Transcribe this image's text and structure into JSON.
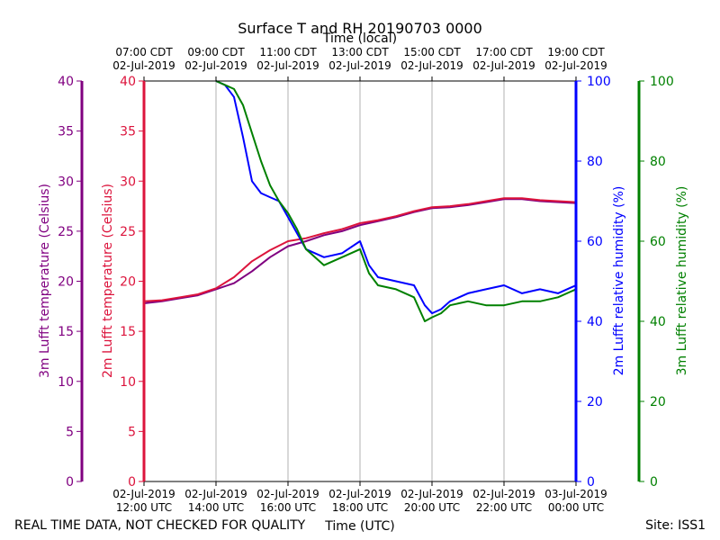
{
  "chart_data": {
    "type": "line",
    "title": "Surface T and RH 20190703 0000",
    "top_axis_label": "Time (local)",
    "bottom_axis_label": "Time (UTC)",
    "footer_left": "REAL TIME DATA, NOT CHECKED FOR QUALITY",
    "footer_right": "Site: ISS1",
    "grid": "vertical-only",
    "x_range_utc": [
      "2019-07-02 12:00",
      "2019-07-03 00:00"
    ],
    "bottom_ticks": [
      {
        "line1": "02-Jul-2019",
        "line2": "12:00 UTC"
      },
      {
        "line1": "02-Jul-2019",
        "line2": "14:00 UTC"
      },
      {
        "line1": "02-Jul-2019",
        "line2": "16:00 UTC"
      },
      {
        "line1": "02-Jul-2019",
        "line2": "18:00 UTC"
      },
      {
        "line1": "02-Jul-2019",
        "line2": "20:00 UTC"
      },
      {
        "line1": "02-Jul-2019",
        "line2": "22:00 UTC"
      },
      {
        "line1": "03-Jul-2019",
        "line2": "00:00 UTC"
      }
    ],
    "top_ticks": [
      {
        "line1": "07:00 CDT",
        "line2": "02-Jul-2019"
      },
      {
        "line1": "09:00 CDT",
        "line2": "02-Jul-2019"
      },
      {
        "line1": "11:00 CDT",
        "line2": "02-Jul-2019"
      },
      {
        "line1": "13:00 CDT",
        "line2": "02-Jul-2019"
      },
      {
        "line1": "15:00 CDT",
        "line2": "02-Jul-2019"
      },
      {
        "line1": "17:00 CDT",
        "line2": "02-Jul-2019"
      },
      {
        "line1": "19:00 CDT",
        "line2": "02-Jul-2019"
      }
    ],
    "axes": {
      "t3m": {
        "label": "3m Lufft temperature (Celsius)",
        "range": [
          0,
          40
        ],
        "ticks": [
          "0",
          "5",
          "10",
          "15",
          "20",
          "25",
          "30",
          "35",
          "40"
        ],
        "color": "#800080",
        "side": "left-outer"
      },
      "t2m": {
        "label": "2m Lufft temperature (Celsius)",
        "range": [
          0,
          40
        ],
        "ticks": [
          "0",
          "5",
          "10",
          "15",
          "20",
          "25",
          "30",
          "35",
          "40"
        ],
        "color": "#dc143c",
        "side": "left-inner"
      },
      "rh2m": {
        "label": "2m Lufft relative humidity (%)",
        "range": [
          0,
          100
        ],
        "ticks": [
          "0",
          "20",
          "40",
          "60",
          "80",
          "100"
        ],
        "color": "#0000ff",
        "side": "right-inner"
      },
      "rh3m": {
        "label": "3m Lufft relative humidity (%)",
        "range": [
          0,
          100
        ],
        "ticks": [
          "0",
          "20",
          "40",
          "60",
          "80",
          "100"
        ],
        "color": "#008000",
        "side": "right-outer"
      }
    },
    "x_units": "hours since 12:00 UTC",
    "series": [
      {
        "name": "3m Lufft temperature (Celsius)",
        "axis": "t3m",
        "color": "#800080",
        "x": [
          0,
          0.5,
          1.0,
          1.5,
          2.0,
          2.5,
          3.0,
          3.5,
          4.0,
          4.5,
          5.0,
          5.5,
          6.0,
          6.5,
          7.0,
          7.5,
          8.0,
          8.5,
          9.0,
          9.5,
          10.0,
          10.5,
          11.0,
          11.5,
          12.0
        ],
        "y": [
          17.8,
          18.0,
          18.3,
          18.6,
          19.2,
          19.8,
          21.0,
          22.4,
          23.5,
          24.0,
          24.6,
          25.0,
          25.6,
          26.0,
          26.4,
          26.9,
          27.3,
          27.4,
          27.6,
          27.9,
          28.2,
          28.2,
          28.0,
          27.9,
          27.8
        ]
      },
      {
        "name": "2m Lufft temperature (Celsius)",
        "axis": "t2m",
        "color": "#dc143c",
        "x": [
          0,
          0.5,
          1.0,
          1.5,
          2.0,
          2.5,
          3.0,
          3.5,
          4.0,
          4.5,
          5.0,
          5.5,
          6.0,
          6.5,
          7.0,
          7.5,
          8.0,
          8.5,
          9.0,
          9.5,
          10.0,
          10.5,
          11.0,
          11.5,
          12.0
        ],
        "y": [
          18.0,
          18.1,
          18.4,
          18.7,
          19.3,
          20.4,
          22.0,
          23.1,
          24.0,
          24.3,
          24.8,
          25.2,
          25.8,
          26.1,
          26.5,
          27.0,
          27.4,
          27.5,
          27.7,
          28.0,
          28.3,
          28.3,
          28.1,
          28.0,
          27.9
        ]
      },
      {
        "name": "2m Lufft relative humidity (%)",
        "axis": "rh2m",
        "color": "#0000ff",
        "x": [
          2.0,
          2.25,
          2.5,
          2.75,
          3.0,
          3.25,
          3.5,
          3.75,
          4.0,
          4.25,
          4.5,
          5.0,
          5.5,
          6.0,
          6.25,
          6.5,
          7.0,
          7.5,
          7.8,
          8.0,
          8.25,
          8.5,
          9.0,
          9.5,
          10.0,
          10.5,
          11.0,
          11.5,
          12.0
        ],
        "y": [
          100,
          99,
          96,
          86,
          75,
          72,
          71,
          70,
          66,
          62,
          58,
          56,
          57,
          60,
          54,
          51,
          50,
          49,
          44,
          42,
          43,
          45,
          47,
          48,
          49,
          47,
          48,
          47,
          49
        ]
      },
      {
        "name": "3m Lufft relative humidity (%)",
        "axis": "rh3m",
        "color": "#008000",
        "x": [
          2.0,
          2.25,
          2.5,
          2.75,
          3.0,
          3.25,
          3.5,
          3.75,
          4.0,
          4.25,
          4.5,
          5.0,
          5.5,
          6.0,
          6.25,
          6.5,
          7.0,
          7.5,
          7.8,
          8.0,
          8.25,
          8.5,
          9.0,
          9.5,
          10.0,
          10.5,
          11.0,
          11.5,
          12.0
        ],
        "y": [
          100,
          99,
          98,
          94,
          87,
          80,
          74,
          70,
          67,
          63,
          58,
          54,
          56,
          58,
          52,
          49,
          48,
          46,
          40,
          41,
          42,
          44,
          45,
          44,
          44,
          45,
          45,
          46,
          48
        ]
      }
    ]
  }
}
